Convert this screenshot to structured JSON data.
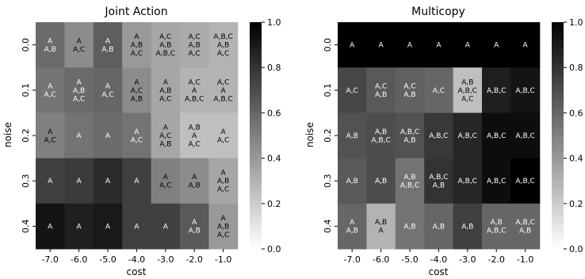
{
  "chart_data": [
    {
      "type": "heatmap",
      "title": "Joint Action",
      "xlabel": "cost",
      "ylabel": "noise",
      "x": [
        "-7.0",
        "-6.0",
        "-5.0",
        "-4.0",
        "-3.0",
        "-2.0",
        "-1.0"
      ],
      "y": [
        "0.0",
        "0.1",
        "0.2",
        "0.3",
        "0.4"
      ],
      "colorbar": {
        "ticks": [
          "0.0",
          "0.2",
          "0.4",
          "0.6",
          "0.8",
          "1.0"
        ],
        "range": [
          0,
          1
        ],
        "cmap": "white-to-black"
      },
      "values": [
        [
          0.58,
          0.45,
          0.63,
          0.4,
          0.35,
          0.33,
          0.3
        ],
        [
          0.54,
          0.58,
          0.6,
          0.45,
          0.35,
          0.3,
          0.3
        ],
        [
          0.5,
          0.55,
          0.58,
          0.55,
          0.35,
          0.25,
          0.25
        ],
        [
          0.75,
          0.77,
          0.83,
          0.75,
          0.5,
          0.45,
          0.35
        ],
        [
          0.92,
          0.88,
          0.9,
          0.75,
          0.75,
          0.65,
          0.4
        ]
      ],
      "annotations": [
        [
          "A\nA,B",
          "A\nA,C",
          "A\nA,B",
          "A\nA,B\nA,C",
          "A,C\nA,B\nA,B,C",
          "A,C\nA,B\nA,C",
          "A,B,C\nA,B\nA,C"
        ],
        [
          "A\nA,C",
          "A\nA,B\nA,C",
          "A\nA,C",
          "A\nA,C\nA,B",
          "A\nA,B\nA,C",
          "A,C\nA\nA,B,C",
          "A,C\nA\nA,B,C"
        ],
        [
          "A\nA,C",
          "A",
          "A",
          "A\nA,C",
          "A\nA,C\nA,B",
          "A,B\nA\nA,C",
          "A\nA,C"
        ],
        [
          "A",
          "A",
          "A",
          "A",
          "A\nA,C",
          "A\nA,B",
          "A\nA,B\nA,C"
        ],
        [
          "A",
          "A",
          "A",
          "A",
          "A",
          "A\nA,B",
          "A\nA,B\nA,C"
        ]
      ]
    },
    {
      "type": "heatmap",
      "title": "Multicopy",
      "xlabel": "cost",
      "ylabel": "noise",
      "x": [
        "-7.0",
        "-6.0",
        "-5.0",
        "-4.0",
        "-3.0",
        "-2.0",
        "-1.0"
      ],
      "y": [
        "0.0",
        "0.1",
        "0.2",
        "0.3",
        "0.4"
      ],
      "colorbar": {
        "ticks": [
          "0.0",
          "0.2",
          "0.4",
          "0.6",
          "0.8",
          "1.0"
        ],
        "range": [
          0,
          1
        ],
        "cmap": "white-to-black"
      },
      "values": [
        [
          1.0,
          1.0,
          1.0,
          1.0,
          1.0,
          1.0,
          1.0
        ],
        [
          0.72,
          0.65,
          0.62,
          0.6,
          0.25,
          0.88,
          0.92
        ],
        [
          0.68,
          0.7,
          0.68,
          0.78,
          0.85,
          0.95,
          0.95
        ],
        [
          0.65,
          0.7,
          0.55,
          0.8,
          0.85,
          0.95,
          1.0
        ],
        [
          0.6,
          0.3,
          0.55,
          0.6,
          0.75,
          0.6,
          0.6
        ]
      ],
      "annotations": [
        [
          "A",
          "A",
          "A",
          "A",
          "A",
          "A",
          "A"
        ],
        [
          "A,C",
          "A,C\nA,B",
          "A,C\nA,B",
          "A,C",
          "A,B\nA,B,C\nA,C",
          "A,B,C",
          "A,B,C"
        ],
        [
          "A,B",
          "A,B\nA,B,C",
          "A,B,C\nA,B",
          "A,B,C",
          "A,B,C",
          "A,B,C",
          "A,B,C"
        ],
        [
          "A,B",
          "A,B",
          "A,B\nA,B,C",
          "A,B,C\nA,B",
          "A,B,C",
          "A,B,C",
          "A,B,C"
        ],
        [
          "A\nA,B",
          "A,B\nA",
          "A,B",
          "A,B",
          "A,B",
          "A,B\nA,B,C",
          "A,B,C\nA,B"
        ]
      ]
    }
  ]
}
